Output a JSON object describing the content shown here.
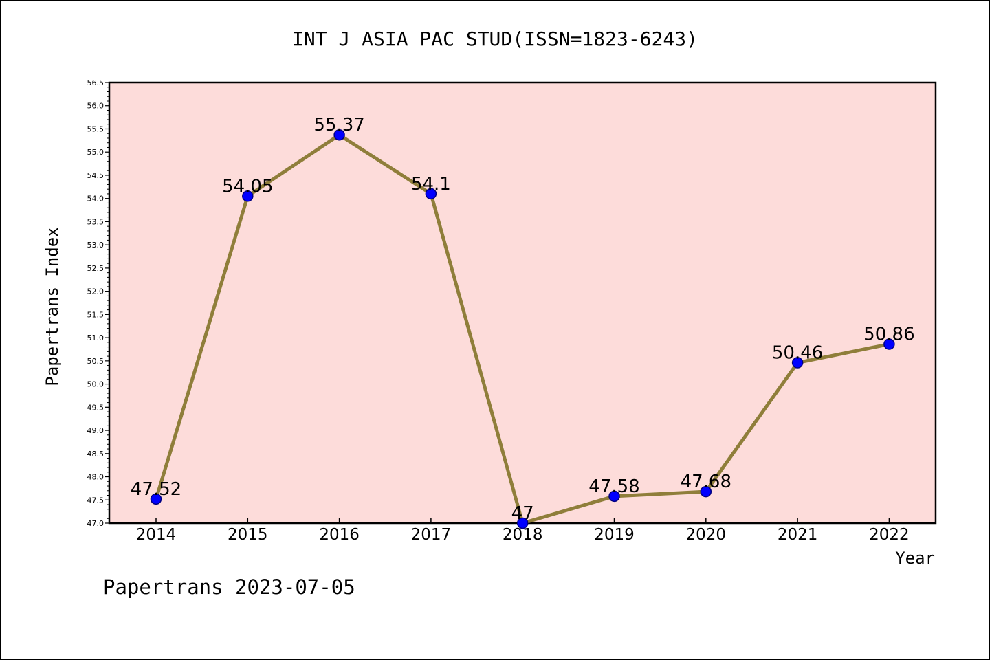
{
  "chart_data": {
    "type": "line",
    "title": "INT J ASIA PAC STUD(ISSN=1823-6243)",
    "xlabel": "Year",
    "ylabel": "Papertrans Index",
    "footer": "Papertrans 2023-07-05",
    "categories": [
      "2014",
      "2015",
      "2016",
      "2017",
      "2018",
      "2019",
      "2020",
      "2021",
      "2022"
    ],
    "series": [
      {
        "values": [
          47.52,
          54.05,
          55.37,
          54.1,
          47,
          47.58,
          47.68,
          50.46,
          50.86
        ],
        "labels": [
          "47.52",
          "54.05",
          "55.37",
          "54.1",
          "47",
          "47.58",
          "47.68",
          "50.46",
          "50.86"
        ]
      }
    ],
    "ylim": [
      47.0,
      56.5
    ],
    "yticks": [
      "47.0",
      "47.5",
      "48.0",
      "48.5",
      "49.0",
      "49.5",
      "50.0",
      "50.5",
      "51.0",
      "51.5",
      "52.0",
      "52.5",
      "53.0",
      "53.5",
      "54.0",
      "54.5",
      "55.0",
      "55.5",
      "56.0",
      "56.5"
    ],
    "grid": false,
    "legend": "none",
    "colors": {
      "plot_background": "#fddcda",
      "line": "#8f7e3a",
      "marker_fill": "#0000ff",
      "marker_stroke": "#000080",
      "axis": "#000000"
    }
  }
}
